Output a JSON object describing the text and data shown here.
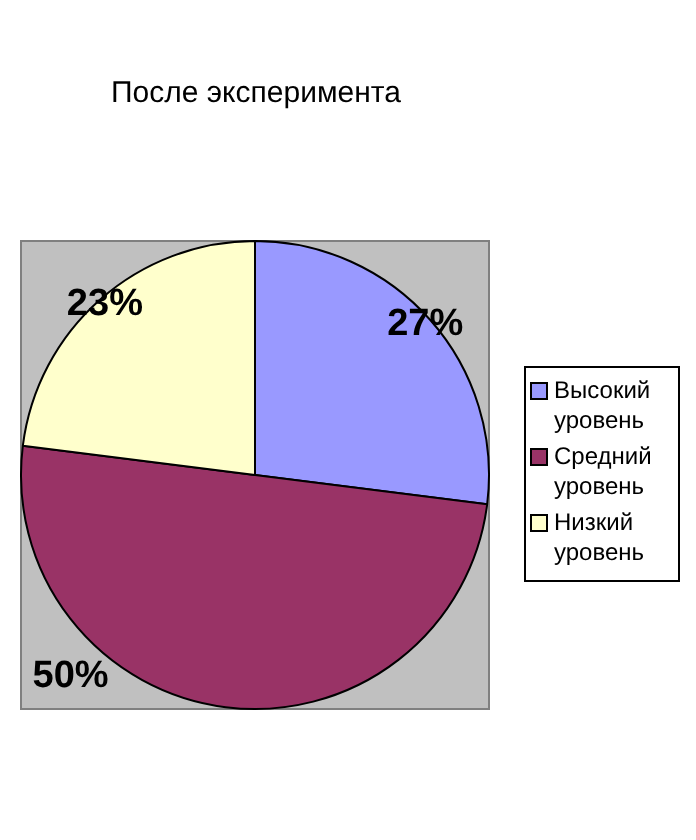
{
  "chart_data": {
    "type": "pie",
    "title": "После эксперимента",
    "categories": [
      "Высокий уровень",
      "Средний уровень",
      "Низкий уровень"
    ],
    "values": [
      27,
      50,
      23
    ],
    "colors": [
      "#9999ff",
      "#993366",
      "#ffffcc"
    ],
    "value_labels": [
      "27%",
      "50%",
      "23%"
    ],
    "legend": "right"
  }
}
